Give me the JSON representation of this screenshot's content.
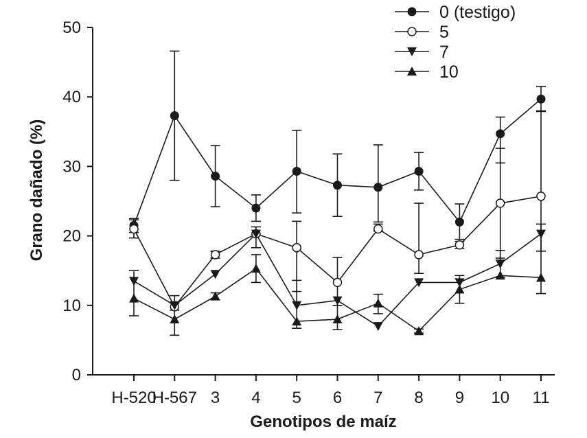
{
  "chart_data": {
    "type": "line",
    "title": "",
    "xlabel": "Genotipos de maíz",
    "ylabel": "Grano dañado (%)",
    "categories": [
      "H-520",
      "H-567",
      "3",
      "4",
      "5",
      "6",
      "7",
      "8",
      "9",
      "10",
      "11"
    ],
    "ylim": [
      0,
      50
    ],
    "yticks": [
      0,
      10,
      20,
      30,
      40,
      50
    ],
    "grid": false,
    "legend_position": "top-right",
    "series": [
      {
        "name": "0 (testigo)",
        "marker": "filled-circle",
        "values": [
          21.5,
          37.3,
          28.6,
          24.0,
          29.3,
          27.3,
          27.0,
          29.3,
          22.0,
          34.7,
          39.7
        ],
        "err_low": [
          1.0,
          9.3,
          4.4,
          1.9,
          6.0,
          4.5,
          5.0,
          2.7,
          2.5,
          4.2,
          1.8
        ],
        "err_high": [
          1.0,
          9.3,
          4.4,
          1.9,
          5.9,
          4.5,
          6.1,
          2.7,
          2.6,
          2.4,
          1.8
        ]
      },
      {
        "name": "5",
        "marker": "open-circle",
        "values": [
          21.0,
          9.8,
          17.3,
          20.3,
          18.3,
          13.3,
          21.0,
          17.3,
          18.7,
          24.7,
          25.7
        ],
        "err_low": [
          1.3,
          0.5,
          0.5,
          2.0,
          6.3,
          3.3,
          0.3,
          2.7,
          0.5,
          7.9,
          7.9
        ],
        "err_high": [
          1.3,
          0.5,
          0.5,
          1.0,
          3.8,
          3.6,
          0.7,
          7.4,
          0.5,
          7.9,
          12.3
        ]
      },
      {
        "name": "7",
        "marker": "triangle-down",
        "values": [
          13.5,
          10.0,
          14.5,
          20.3,
          10.0,
          10.7,
          7.0,
          13.3,
          13.3,
          16.0,
          20.3
        ]
      },
      {
        "name": "10",
        "marker": "triangle-up",
        "values": [
          11.0,
          8.0,
          11.3,
          15.3,
          7.7,
          8.0,
          10.3,
          6.3,
          12.3,
          14.3,
          14.0
        ],
        "err_low": [
          2.5,
          2.3,
          0.5,
          2.0,
          1.0,
          1.5,
          1.5,
          0.3,
          2.0,
          0.3,
          2.3
        ],
        "err_high": [
          4.0,
          3.4,
          0.5,
          2.0,
          5.9,
          2.0,
          1.3,
          0.3,
          2.0,
          3.6,
          7.7
        ]
      }
    ]
  }
}
